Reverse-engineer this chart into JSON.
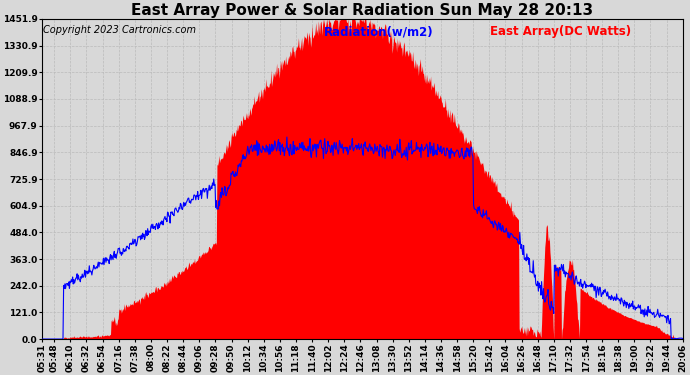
{
  "title": "East Array Power & Solar Radiation Sun May 28 20:13",
  "copyright": "Copyright 2023 Cartronics.com",
  "legend_radiation": "Radiation(w/m2)",
  "legend_east_array": "East Array(DC Watts)",
  "radiation_color": "blue",
  "east_array_color": "red",
  "background_color": "#d8d8d8",
  "y_ticks": [
    0.0,
    121.0,
    242.0,
    363.0,
    484.0,
    604.9,
    725.9,
    846.9,
    967.9,
    1088.9,
    1209.9,
    1330.9,
    1451.9
  ],
  "ymax": 1451.9,
  "ymin": 0.0,
  "x_labels": [
    "05:31",
    "05:48",
    "06:10",
    "06:32",
    "06:54",
    "07:16",
    "07:38",
    "08:00",
    "08:22",
    "08:44",
    "09:06",
    "09:28",
    "09:50",
    "10:12",
    "10:34",
    "10:56",
    "11:18",
    "11:40",
    "12:02",
    "12:24",
    "12:46",
    "13:08",
    "13:30",
    "13:52",
    "14:14",
    "14:36",
    "14:58",
    "15:20",
    "15:42",
    "16:04",
    "16:26",
    "16:48",
    "17:10",
    "17:32",
    "17:54",
    "18:16",
    "18:38",
    "19:00",
    "19:22",
    "19:44",
    "20:06"
  ],
  "grid_color": "#bbbbbb",
  "title_fontsize": 11,
  "tick_fontsize": 6.5,
  "legend_fontsize": 8.5,
  "copyright_fontsize": 7
}
